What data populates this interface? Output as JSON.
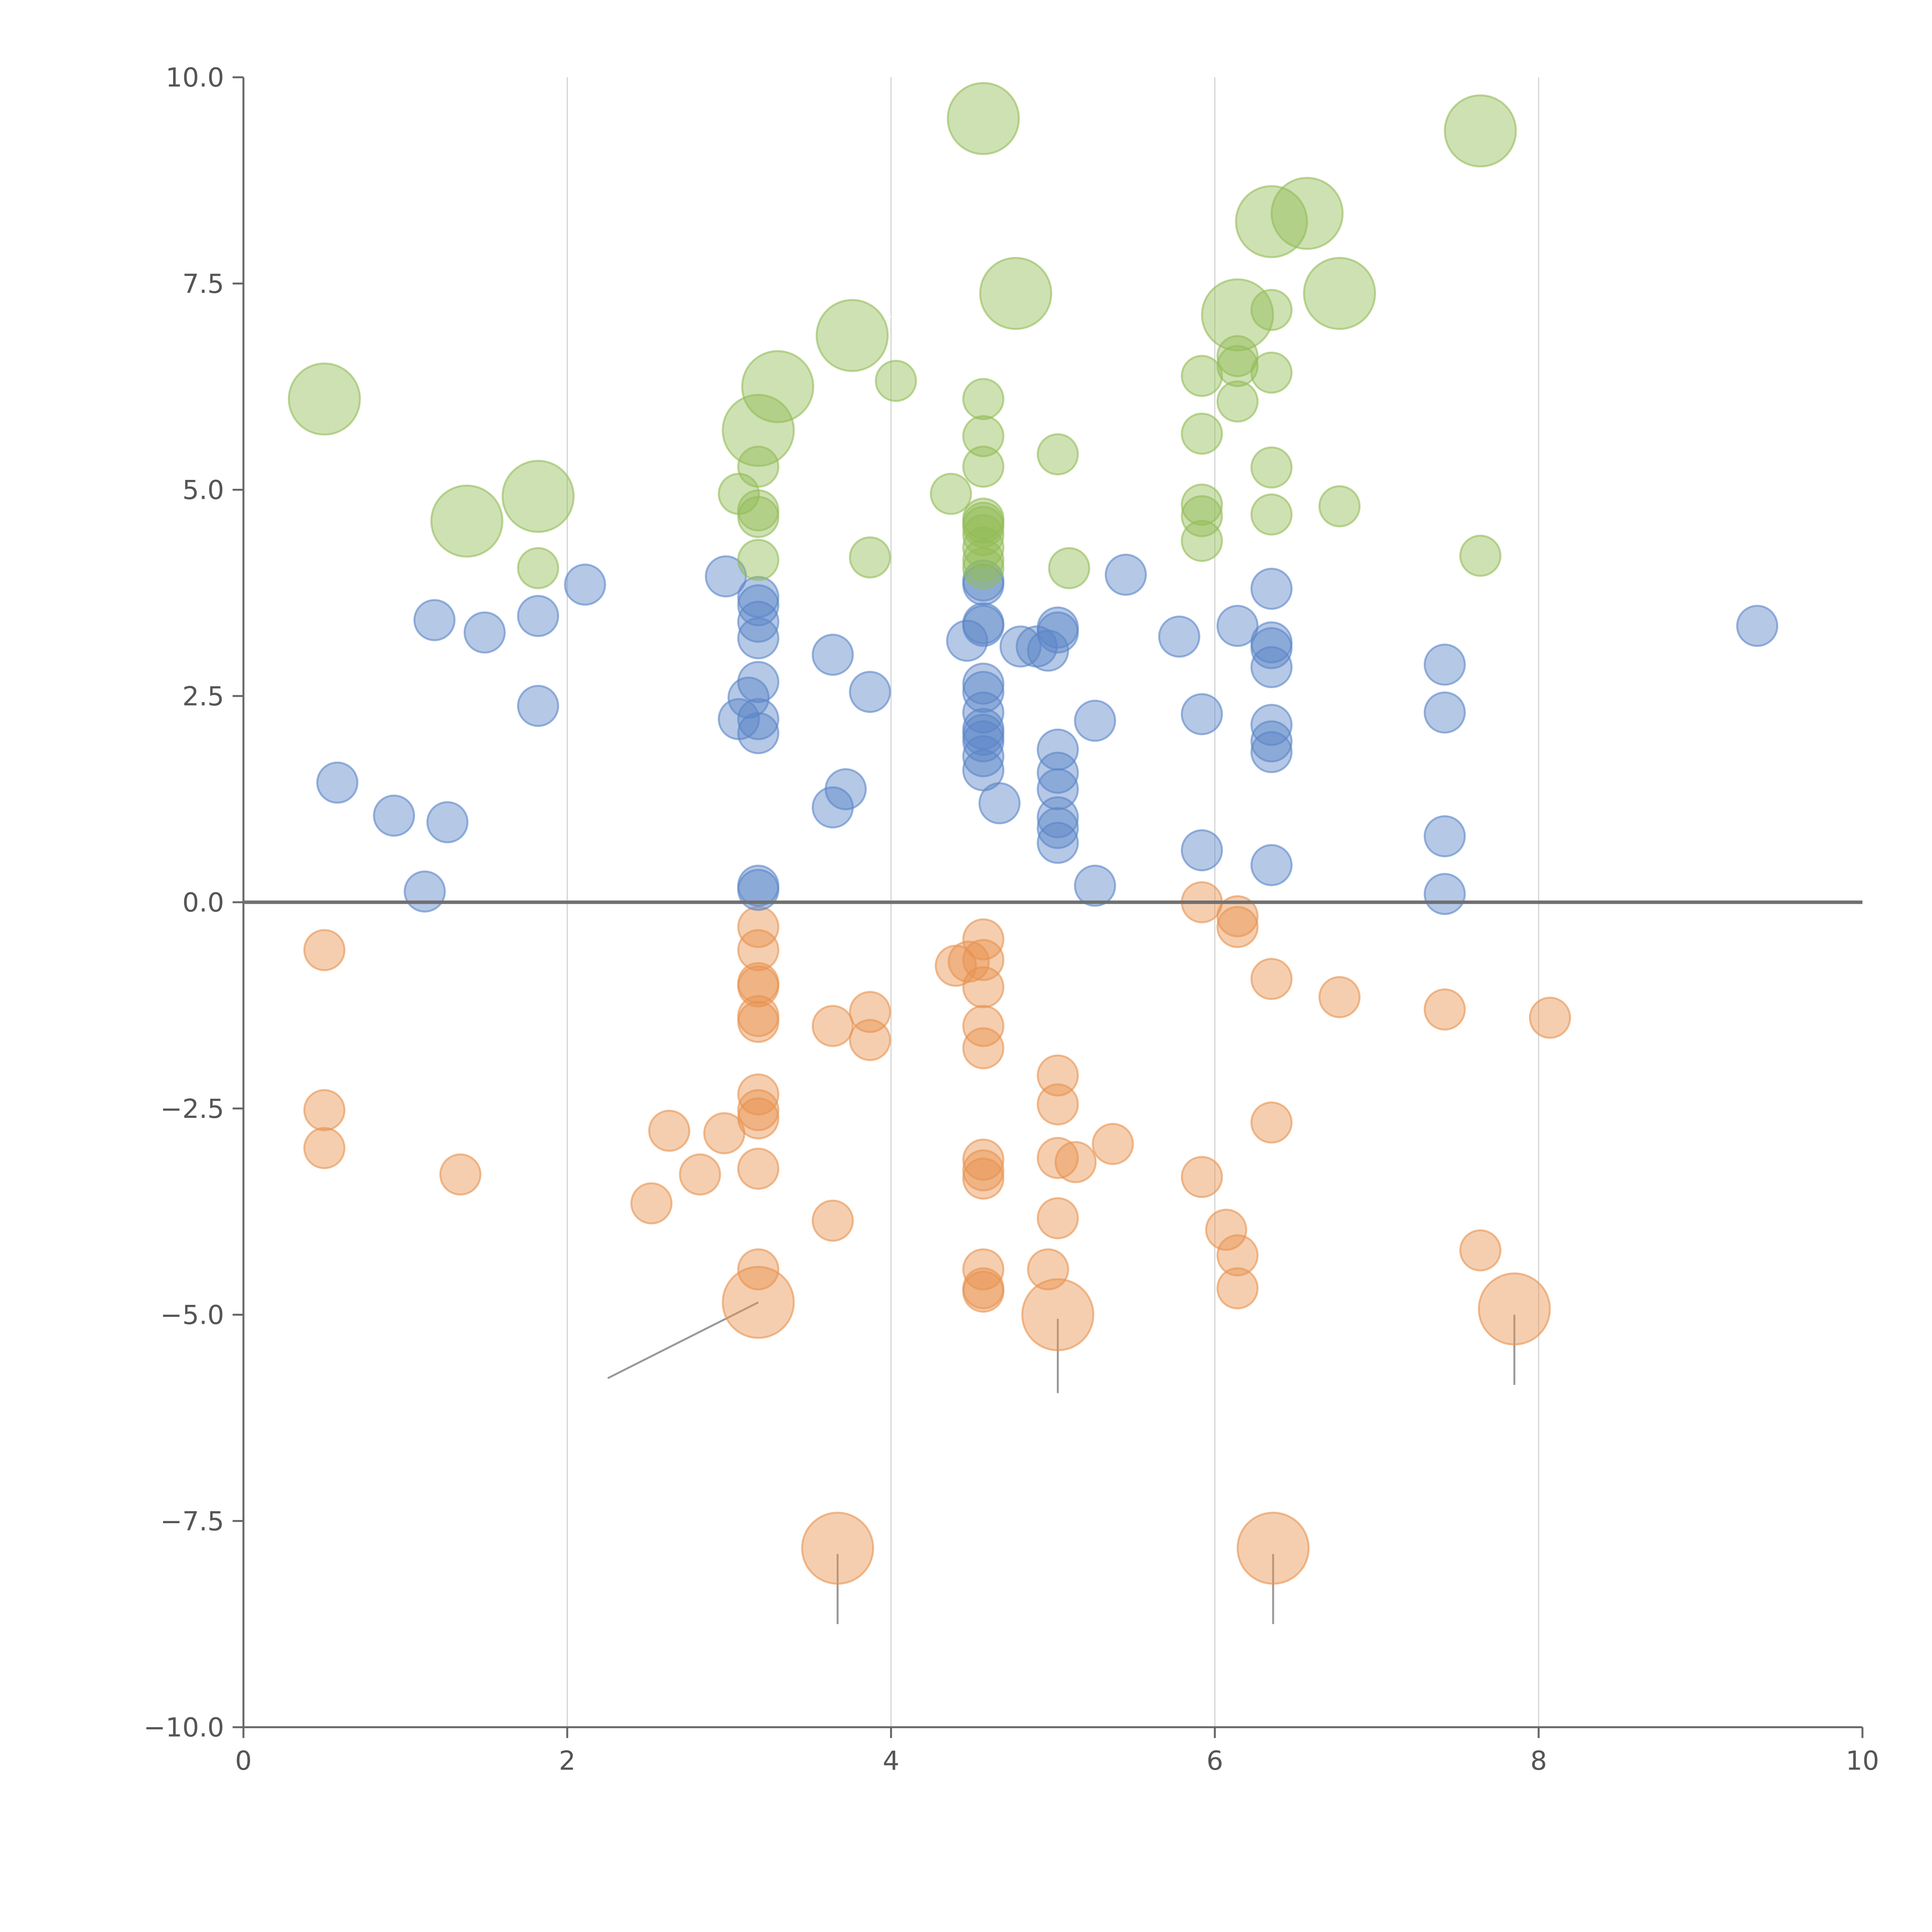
{
  "chart_data": {
    "type": "scatter",
    "title": "",
    "xlabel": "",
    "ylabel": "",
    "xlim": [
      0,
      10
    ],
    "ylim": [
      -10,
      10
    ],
    "grid": "vertical",
    "x_ticks": [
      "0",
      "2",
      "4",
      "6",
      "8",
      "10"
    ],
    "y_ticks": [
      "−10.0",
      "−7.5",
      "−5.0",
      "−2.5",
      "0.0",
      "2.5",
      "5.0",
      "7.5",
      "10.0"
    ],
    "reference_line_y": 0,
    "colors": {
      "orange": "#e8924f",
      "blue": "#5a86c8",
      "green": "#93bc56"
    },
    "series": [
      {
        "name": "orange",
        "color": "#e8924f",
        "points": [
          [
            0.5,
            -0.58
          ],
          [
            0.5,
            -2.52
          ],
          [
            0.5,
            -2.98
          ],
          [
            1.34,
            -3.3
          ],
          [
            2.52,
            -3.65
          ],
          [
            2.63,
            -2.77
          ],
          [
            2.82,
            -3.3
          ],
          [
            2.97,
            -2.8
          ],
          [
            3.18,
            -0.3
          ],
          [
            3.18,
            -0.58
          ],
          [
            3.18,
            -0.98
          ],
          [
            3.18,
            -1.02
          ],
          [
            3.18,
            -1.38
          ],
          [
            3.18,
            -1.45
          ],
          [
            3.18,
            -2.33
          ],
          [
            3.18,
            -2.52
          ],
          [
            3.18,
            -2.62
          ],
          [
            3.18,
            -3.23
          ],
          [
            3.18,
            -4.45
          ],
          [
            3.64,
            -1.5
          ],
          [
            3.64,
            -3.86
          ],
          [
            3.87,
            -1.33
          ],
          [
            3.87,
            -1.67
          ],
          [
            4.4,
            -0.77
          ],
          [
            4.48,
            -0.72
          ],
          [
            4.57,
            -0.45
          ],
          [
            4.57,
            -0.7
          ],
          [
            4.57,
            -1.03
          ],
          [
            4.57,
            -1.5
          ],
          [
            4.57,
            -1.77
          ],
          [
            4.57,
            -3.12
          ],
          [
            4.57,
            -3.25
          ],
          [
            4.57,
            -3.35
          ],
          [
            4.57,
            -4.45
          ],
          [
            4.57,
            -4.68
          ],
          [
            4.57,
            -4.72
          ],
          [
            4.97,
            -4.45
          ],
          [
            5.03,
            -2.1
          ],
          [
            5.03,
            -2.45
          ],
          [
            5.03,
            -3.1
          ],
          [
            5.14,
            -3.15
          ],
          [
            5.03,
            -3.83
          ],
          [
            5.37,
            -2.93
          ],
          [
            5.92,
            0.0
          ],
          [
            5.92,
            -3.33
          ],
          [
            6.07,
            -3.97
          ],
          [
            6.14,
            -0.17
          ],
          [
            6.14,
            -0.3
          ],
          [
            6.14,
            -4.28
          ],
          [
            6.14,
            -4.68
          ],
          [
            6.35,
            -0.93
          ],
          [
            6.35,
            -2.67
          ],
          [
            6.77,
            -1.15
          ],
          [
            7.42,
            -1.3
          ],
          [
            7.64,
            -4.22
          ],
          [
            8.07,
            -1.4
          ]
        ],
        "large_points": [
          [
            3.18,
            -4.85
          ],
          [
            5.03,
            -5.0
          ],
          [
            7.85,
            -4.93
          ],
          [
            3.67,
            -7.83
          ],
          [
            6.36,
            -7.83
          ]
        ]
      },
      {
        "name": "blue",
        "color": "#5a86c8",
        "points": [
          [
            0.58,
            1.45
          ],
          [
            0.93,
            1.05
          ],
          [
            1.12,
            0.13
          ],
          [
            1.18,
            3.42
          ],
          [
            1.26,
            0.97
          ],
          [
            1.49,
            3.27
          ],
          [
            1.82,
            3.47
          ],
          [
            1.82,
            2.38
          ],
          [
            2.11,
            3.85
          ],
          [
            2.98,
            3.95
          ],
          [
            3.06,
            2.22
          ],
          [
            3.12,
            2.48
          ],
          [
            3.18,
            0.2
          ],
          [
            3.18,
            0.15
          ],
          [
            3.18,
            2.05
          ],
          [
            3.18,
            2.22
          ],
          [
            3.18,
            2.67
          ],
          [
            3.18,
            3.2
          ],
          [
            3.18,
            3.4
          ],
          [
            3.18,
            3.6
          ],
          [
            3.18,
            3.7
          ],
          [
            3.64,
            1.15
          ],
          [
            3.64,
            3.0
          ],
          [
            3.72,
            1.37
          ],
          [
            3.87,
            2.55
          ],
          [
            4.47,
            3.17
          ],
          [
            4.57,
            1.6
          ],
          [
            4.57,
            1.77
          ],
          [
            4.57,
            1.95
          ],
          [
            4.57,
            2.03
          ],
          [
            4.57,
            2.1
          ],
          [
            4.57,
            2.3
          ],
          [
            4.57,
            2.55
          ],
          [
            4.57,
            2.65
          ],
          [
            4.57,
            3.35
          ],
          [
            4.57,
            3.38
          ],
          [
            4.57,
            3.85
          ],
          [
            4.57,
            3.9
          ],
          [
            4.67,
            1.2
          ],
          [
            4.8,
            3.1
          ],
          [
            4.9,
            3.1
          ],
          [
            4.97,
            3.05
          ],
          [
            5.03,
            3.27
          ],
          [
            5.03,
            3.33
          ],
          [
            5.03,
            1.85
          ],
          [
            5.03,
            1.57
          ],
          [
            5.03,
            1.37
          ],
          [
            5.03,
            1.03
          ],
          [
            5.03,
            0.9
          ],
          [
            5.03,
            0.72
          ],
          [
            5.26,
            0.2
          ],
          [
            5.26,
            2.2
          ],
          [
            5.45,
            3.97
          ],
          [
            5.78,
            3.22
          ],
          [
            5.92,
            2.28
          ],
          [
            5.92,
            0.63
          ],
          [
            6.14,
            3.35
          ],
          [
            6.35,
            3.8
          ],
          [
            6.35,
            3.15
          ],
          [
            6.35,
            3.08
          ],
          [
            6.35,
            2.85
          ],
          [
            6.35,
            2.15
          ],
          [
            6.35,
            1.95
          ],
          [
            6.35,
            1.82
          ],
          [
            6.35,
            0.45
          ],
          [
            7.42,
            2.88
          ],
          [
            7.42,
            2.3
          ],
          [
            7.42,
            0.8
          ],
          [
            7.42,
            0.1
          ],
          [
            9.35,
            3.35
          ]
        ],
        "large_points": []
      },
      {
        "name": "green",
        "color": "#93bc56",
        "points": [
          [
            1.82,
            4.05
          ],
          [
            3.06,
            4.95
          ],
          [
            3.18,
            5.28
          ],
          [
            3.18,
            4.75
          ],
          [
            3.18,
            4.67
          ],
          [
            3.18,
            4.15
          ],
          [
            3.87,
            4.18
          ],
          [
            4.03,
            6.32
          ],
          [
            4.37,
            4.95
          ],
          [
            4.57,
            6.1
          ],
          [
            4.57,
            5.65
          ],
          [
            4.57,
            5.28
          ],
          [
            4.57,
            4.65
          ],
          [
            4.57,
            4.6
          ],
          [
            4.57,
            4.55
          ],
          [
            4.57,
            4.45
          ],
          [
            4.57,
            4.3
          ],
          [
            4.57,
            4.15
          ],
          [
            4.57,
            4.05
          ],
          [
            5.03,
            5.43
          ],
          [
            5.1,
            4.05
          ],
          [
            5.92,
            6.38
          ],
          [
            5.92,
            5.68
          ],
          [
            5.92,
            4.82
          ],
          [
            5.92,
            4.68
          ],
          [
            5.92,
            4.38
          ],
          [
            6.14,
            6.62
          ],
          [
            6.14,
            6.5
          ],
          [
            6.14,
            6.07
          ],
          [
            6.35,
            7.18
          ],
          [
            6.35,
            6.42
          ],
          [
            6.35,
            5.27
          ],
          [
            6.35,
            4.7
          ],
          [
            6.77,
            4.8
          ],
          [
            7.64,
            4.2
          ]
        ],
        "large_points": [
          [
            0.5,
            6.1
          ],
          [
            1.38,
            4.62
          ],
          [
            1.82,
            4.92
          ],
          [
            3.18,
            5.72
          ],
          [
            3.3,
            6.25
          ],
          [
            3.76,
            6.87
          ],
          [
            4.57,
            9.5
          ],
          [
            4.77,
            7.38
          ],
          [
            6.14,
            7.12
          ],
          [
            6.35,
            8.25
          ],
          [
            6.57,
            8.35
          ],
          [
            6.77,
            7.38
          ],
          [
            7.64,
            9.35
          ]
        ]
      }
    ]
  }
}
